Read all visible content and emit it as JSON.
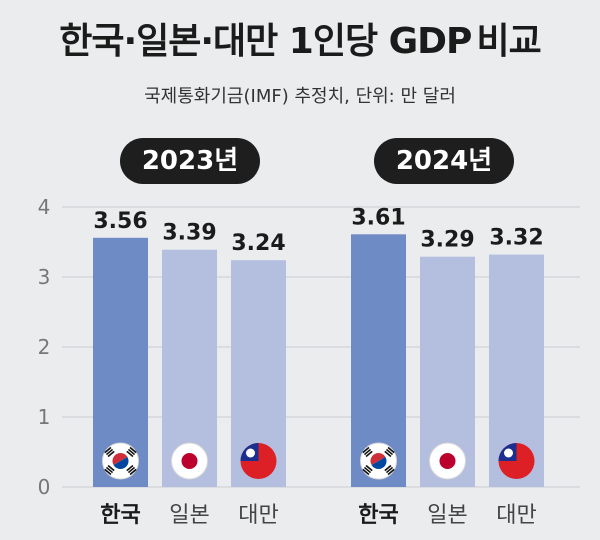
{
  "header": {
    "title_bold": "한국·일본·대만 1인당 GDP",
    "title_light": "비교",
    "subtitle": "국제통화기금(IMF) 추정치, 단위: 만 달러"
  },
  "colors": {
    "background": "#ebeced",
    "korea_bar": "#6f8bc6",
    "other_bar": "#b4bfdf",
    "grid": "#c9ccd3",
    "pill": "#1e1e1e"
  },
  "chart_data": {
    "type": "bar",
    "title": "한국·일본·대만 1인당 GDP 비교",
    "subtitle": "국제통화기금(IMF) 추정치, 단위: 만 달러",
    "categories": [
      "한국",
      "일본",
      "대만"
    ],
    "y_ticks": [
      "0",
      "1",
      "2",
      "3",
      "4"
    ],
    "ylim": [
      0,
      4.3
    ],
    "grid": true,
    "groups": [
      {
        "label": "2023년",
        "values": [
          3.56,
          3.39,
          3.24
        ],
        "value_labels": [
          "3.56",
          "3.39",
          "3.24"
        ]
      },
      {
        "label": "2024년",
        "values": [
          3.61,
          3.29,
          3.32
        ],
        "value_labels": [
          "3.61",
          "3.29",
          "3.32"
        ]
      }
    ],
    "flags": [
      "korea-flag-icon",
      "japan-flag-icon",
      "taiwan-flag-icon"
    ]
  }
}
